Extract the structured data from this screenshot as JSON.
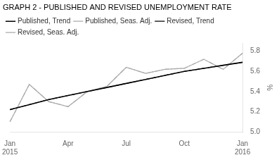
{
  "chart_data": {
    "type": "line",
    "title": "GRAPH 2 - PUBLISHED AND REVISED UNEMPLOYMENT RATE",
    "y_label": "%",
    "categories": [
      "Jan\n2015",
      null,
      null,
      "Apr",
      null,
      null,
      "Jul",
      null,
      null,
      "Oct",
      null,
      null,
      "Jan\n2016"
    ],
    "series": [
      {
        "name": "Published, Trend",
        "color": "#000000",
        "line_style": "solid",
        "values": [
          5.22,
          5.27,
          5.32,
          5.36,
          5.4,
          5.44,
          5.48,
          5.52,
          5.56,
          5.6,
          5.63,
          5.66,
          5.69
        ]
      },
      {
        "name": "Published, Seas. Adj.",
        "color": "#aaaaaa",
        "line_style": "solid",
        "values": [
          5.1,
          5.47,
          5.3,
          5.25,
          5.4,
          5.45,
          5.64,
          5.58,
          5.62,
          5.63,
          5.72,
          5.62,
          5.78
        ]
      },
      {
        "name": "Revised, Trend",
        "color": "#000000",
        "line_style": "dashed",
        "values": [
          5.22,
          5.27,
          5.32,
          5.36,
          5.4,
          5.44,
          5.48,
          5.52,
          5.56,
          5.6,
          5.63,
          5.66,
          5.69
        ]
      },
      {
        "name": "Revised, Seas. Adj.",
        "color": "#aaaaaa",
        "line_style": "dashdot",
        "values": [
          5.1,
          5.47,
          5.3,
          5.25,
          5.4,
          5.45,
          5.64,
          5.58,
          5.62,
          5.63,
          5.72,
          5.62,
          5.78
        ]
      }
    ],
    "ylim": [
      5.0,
      5.88
    ],
    "yticks": [
      {
        "value": 5.0,
        "label": "5.0"
      },
      5.2,
      5.4,
      5.6,
      5.8
    ],
    "grid": false,
    "legend": "top"
  }
}
